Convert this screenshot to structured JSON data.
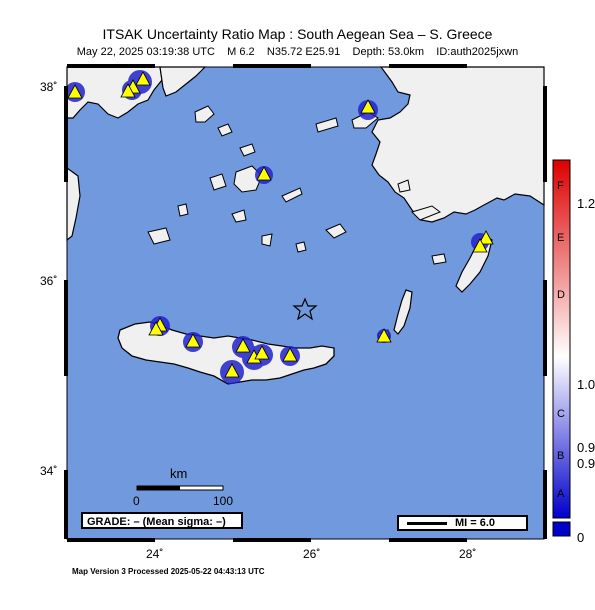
{
  "header": {
    "title": "ITSAK Uncertainty Ratio Map : South Aegean Sea – S. Greece",
    "subtitle": "May 22, 2025 03:19:38 UTC    M 6.2    N35.72 E25.91    Depth: 53.0km    ID:auth2025jxwn"
  },
  "map": {
    "lat_ticks": [
      "38˚",
      "36˚",
      "34˚"
    ],
    "lon_ticks": [
      "24˚",
      "26˚",
      "28˚"
    ],
    "colors": {
      "sea": "#7199de",
      "land": "#f0f0f0",
      "station": "#ffff00",
      "blob": "#2222cc"
    },
    "epicenter_icon": "star-icon",
    "station_icon": "triangle-icon"
  },
  "scale_bar": {
    "unit": "km",
    "start": "0",
    "end": "100"
  },
  "grade": {
    "text": "GRADE: – (Mean sigma: –)"
  },
  "mi_legend": {
    "text": "MI = 6.0"
  },
  "colorbar": {
    "letters": [
      "F",
      "E",
      "D",
      "C",
      "B",
      "A"
    ],
    "values": [
      "1.2",
      "1.0",
      "0.9",
      "0.9",
      "0"
    ],
    "colors": {
      "top": "#dd0000",
      "mid": "#ffffff",
      "bottom": "#0000dd"
    }
  },
  "footer": {
    "text": "Map Version 3 Processed 2025-05-22 04:43:13 UTC"
  }
}
